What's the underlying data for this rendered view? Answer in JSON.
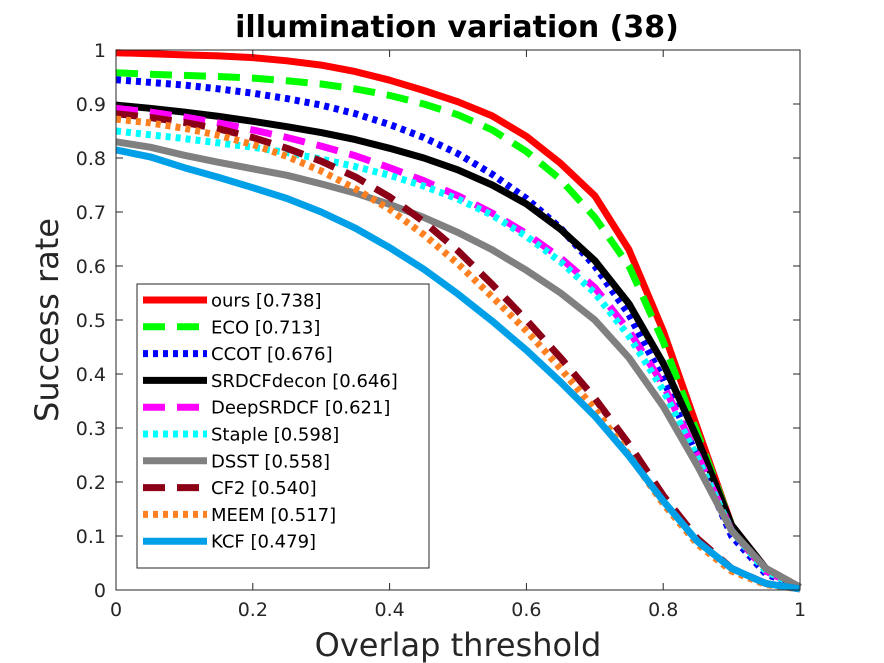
{
  "chart_data": {
    "type": "line",
    "title": "illumination variation (38)",
    "xlabel": "Overlap threshold",
    "ylabel": "Success rate",
    "xlim": [
      0,
      1
    ],
    "ylim": [
      0,
      1
    ],
    "xticks": [
      "0",
      "0.2",
      "0.4",
      "0.6",
      "0.8",
      "1"
    ],
    "yticks": [
      "0",
      "0.1",
      "0.2",
      "0.3",
      "0.4",
      "0.5",
      "0.6",
      "0.7",
      "0.8",
      "0.9",
      "1"
    ],
    "grid": false,
    "legend_position": "lower-left",
    "x": [
      0,
      0.05,
      0.1,
      0.15,
      0.2,
      0.25,
      0.3,
      0.35,
      0.4,
      0.45,
      0.5,
      0.55,
      0.6,
      0.65,
      0.7,
      0.75,
      0.8,
      0.85,
      0.9,
      0.95,
      1
    ],
    "series": [
      {
        "name": "ours [0.738]",
        "color": "#ff0000",
        "style": "solid",
        "values": [
          0.995,
          0.993,
          0.991,
          0.989,
          0.986,
          0.98,
          0.972,
          0.96,
          0.944,
          0.925,
          0.904,
          0.878,
          0.84,
          0.79,
          0.73,
          0.63,
          0.48,
          0.3,
          0.12,
          0.04,
          0.005
        ]
      },
      {
        "name": "ECO [0.713]",
        "color": "#00ff00",
        "style": "dashed",
        "values": [
          0.958,
          0.955,
          0.953,
          0.951,
          0.948,
          0.943,
          0.937,
          0.928,
          0.916,
          0.9,
          0.88,
          0.852,
          0.812,
          0.76,
          0.69,
          0.6,
          0.46,
          0.29,
          0.12,
          0.035,
          0.005
        ]
      },
      {
        "name": "CCOT [0.676]",
        "color": "#0000ff",
        "style": "dotted",
        "values": [
          0.945,
          0.94,
          0.935,
          0.928,
          0.92,
          0.91,
          0.898,
          0.882,
          0.862,
          0.838,
          0.808,
          0.77,
          0.725,
          0.67,
          0.6,
          0.51,
          0.39,
          0.245,
          0.1,
          0.03,
          0.005
        ]
      },
      {
        "name": "SRDCFdecon [0.646]",
        "color": "#000000",
        "style": "solid",
        "values": [
          0.898,
          0.892,
          0.885,
          0.877,
          0.868,
          0.858,
          0.847,
          0.834,
          0.818,
          0.8,
          0.778,
          0.75,
          0.715,
          0.668,
          0.61,
          0.53,
          0.42,
          0.28,
          0.12,
          0.04,
          0.005
        ]
      },
      {
        "name": "DeepSRDCF [0.621]",
        "color": "#ff00ff",
        "style": "dashed",
        "values": [
          0.892,
          0.885,
          0.876,
          0.865,
          0.852,
          0.838,
          0.822,
          0.804,
          0.782,
          0.758,
          0.73,
          0.698,
          0.66,
          0.615,
          0.56,
          0.48,
          0.38,
          0.25,
          0.11,
          0.035,
          0.005
        ]
      },
      {
        "name": "Staple [0.598]",
        "color": "#00ffff",
        "style": "dotted",
        "values": [
          0.85,
          0.843,
          0.836,
          0.828,
          0.82,
          0.81,
          0.798,
          0.784,
          0.768,
          0.748,
          0.724,
          0.694,
          0.655,
          0.608,
          0.55,
          0.47,
          0.37,
          0.245,
          0.11,
          0.035,
          0.005
        ]
      },
      {
        "name": "DSST [0.558]",
        "color": "#808080",
        "style": "solid",
        "values": [
          0.83,
          0.82,
          0.805,
          0.792,
          0.78,
          0.768,
          0.752,
          0.735,
          0.714,
          0.69,
          0.662,
          0.63,
          0.592,
          0.55,
          0.5,
          0.43,
          0.34,
          0.23,
          0.11,
          0.04,
          0.005
        ]
      },
      {
        "name": "CF2 [0.540]",
        "color": "#8b0016",
        "style": "dashed",
        "values": [
          0.882,
          0.875,
          0.866,
          0.854,
          0.838,
          0.818,
          0.794,
          0.765,
          0.728,
          0.682,
          0.628,
          0.566,
          0.5,
          0.43,
          0.355,
          0.27,
          0.175,
          0.095,
          0.04,
          0.012,
          0.002
        ]
      },
      {
        "name": "MEEM [0.517]",
        "color": "#ff8020",
        "style": "dotted",
        "values": [
          0.872,
          0.865,
          0.855,
          0.842,
          0.825,
          0.803,
          0.776,
          0.743,
          0.705,
          0.658,
          0.604,
          0.543,
          0.48,
          0.41,
          0.335,
          0.25,
          0.16,
          0.085,
          0.035,
          0.01,
          0.002
        ]
      },
      {
        "name": "KCF [0.479]",
        "color": "#00a0e8",
        "style": "solid",
        "values": [
          0.815,
          0.802,
          0.782,
          0.764,
          0.745,
          0.725,
          0.7,
          0.67,
          0.634,
          0.594,
          0.548,
          0.498,
          0.444,
          0.385,
          0.322,
          0.248,
          0.165,
          0.09,
          0.04,
          0.012,
          0.002
        ]
      }
    ]
  }
}
